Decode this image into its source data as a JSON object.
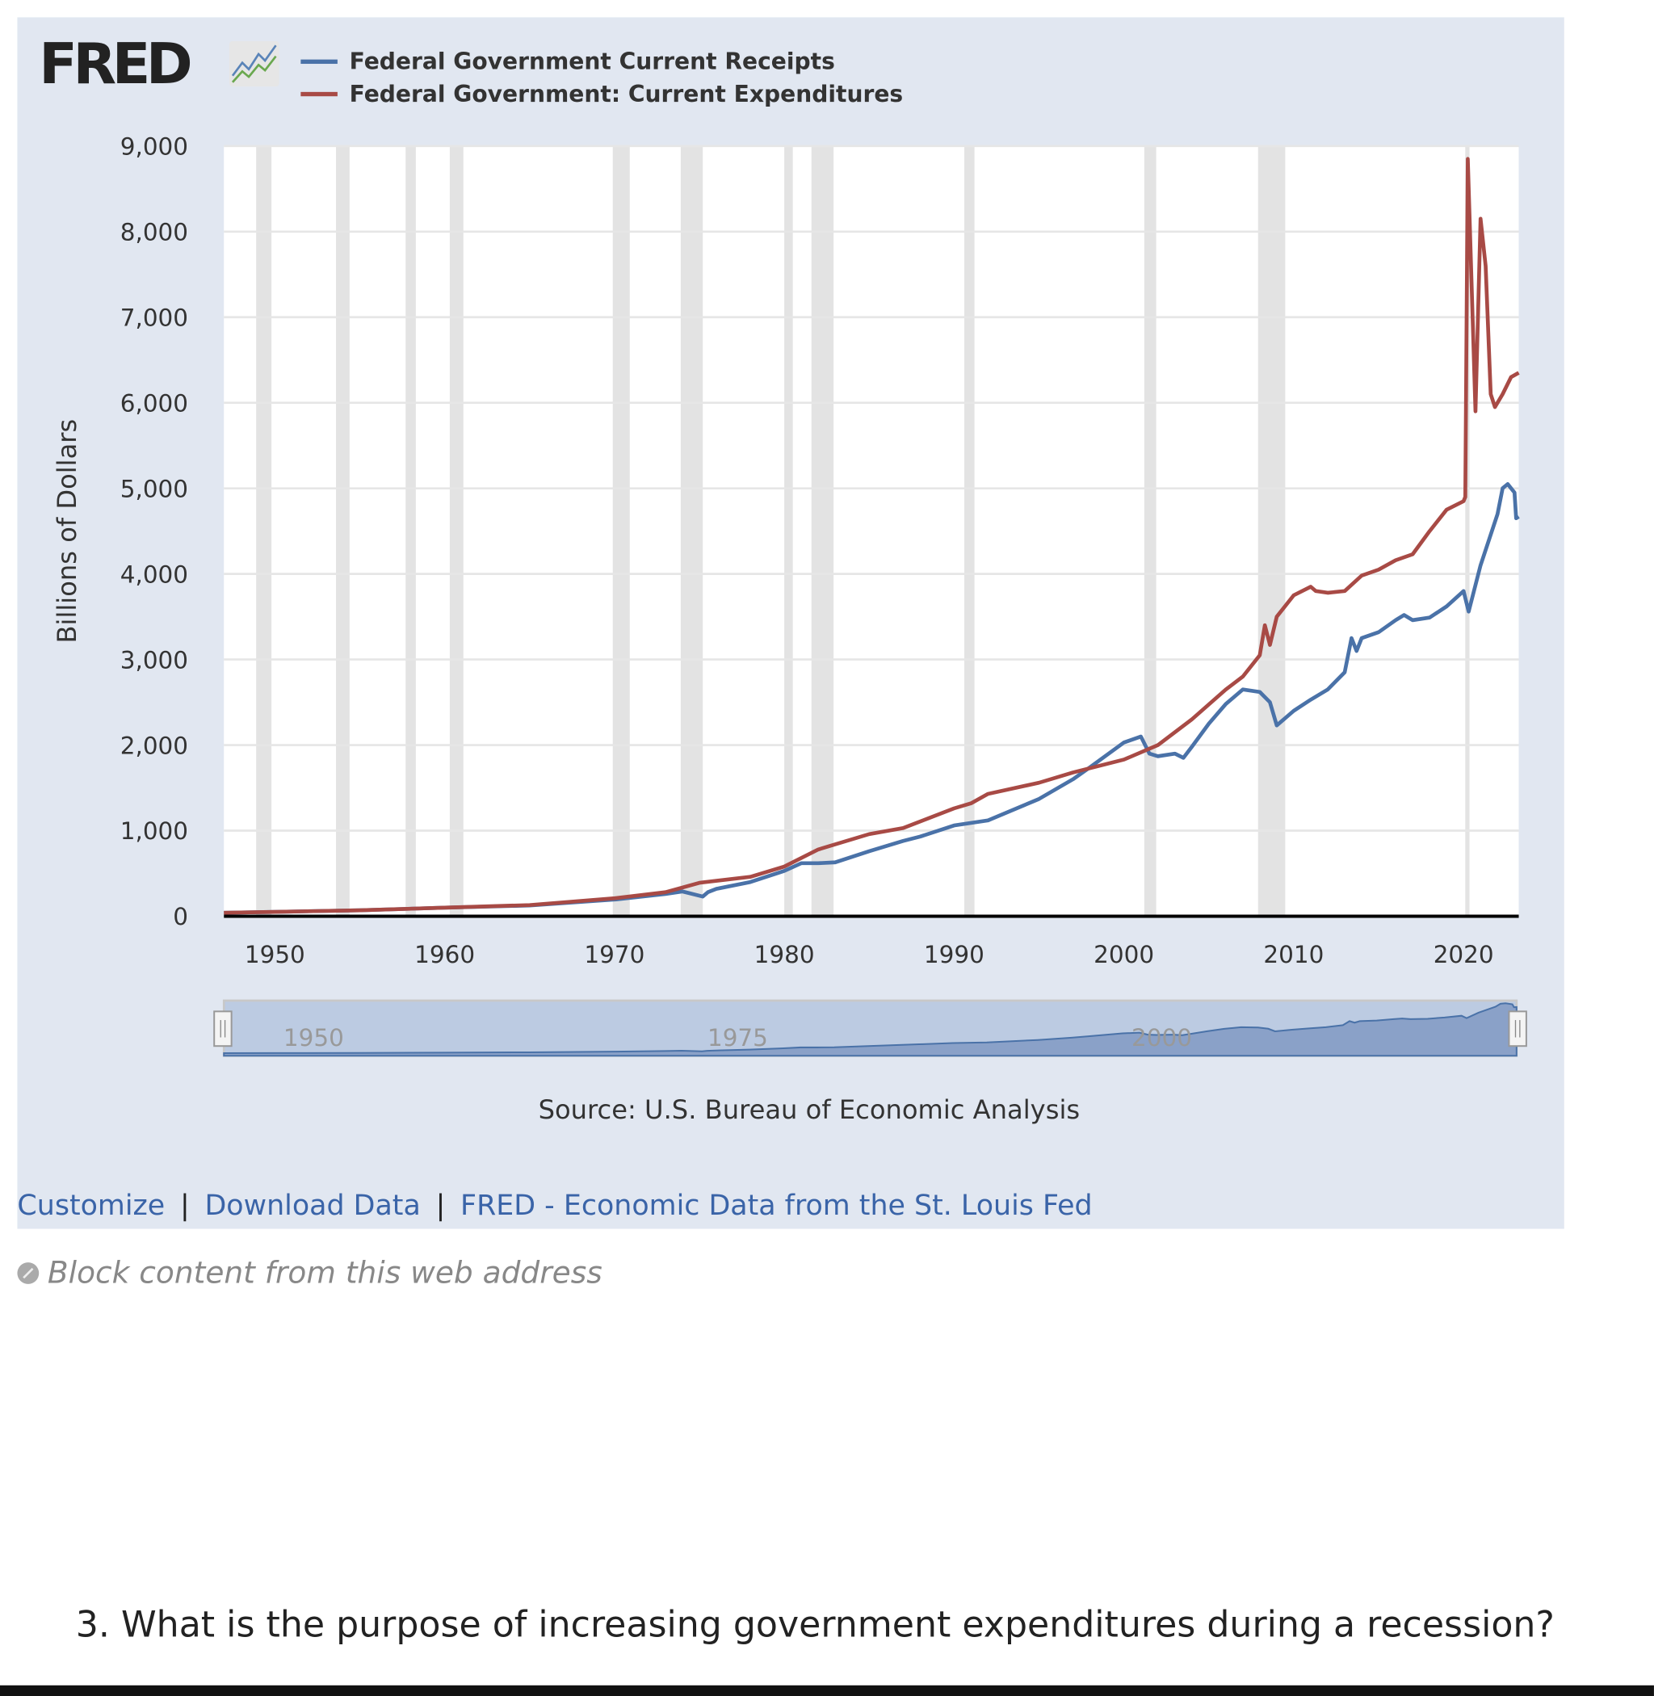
{
  "logo": {
    "text": "FRED",
    "icon": "fred-chart-logo-icon"
  },
  "links": [
    {
      "label": "Customize"
    },
    {
      "label": "Download Data"
    },
    {
      "label": "FRED - Economic Data from the St. Louis Fed"
    }
  ],
  "link_separator": "|",
  "block_content": {
    "label": "Block content from this web address",
    "icon": "block-icon"
  },
  "question": "3.  What is the purpose of increasing government expenditures during a recession?",
  "chart_data": {
    "type": "line",
    "title": "",
    "xlabel": "",
    "ylabel": "Billions of Dollars",
    "source": "Source: U.S. Bureau of Economic Analysis",
    "xlim": [
      1947,
      2023.25
    ],
    "ylim": [
      0,
      9000
    ],
    "yticks": [
      "0",
      "1,000",
      "2,000",
      "3,000",
      "4,000",
      "5,000",
      "6,000",
      "7,000",
      "8,000",
      "9,000"
    ],
    "xticks": [
      "1950",
      "1960",
      "1970",
      "1980",
      "1990",
      "2000",
      "2010",
      "2020"
    ],
    "grid": true,
    "legend": "top-left",
    "navigator_labels": [
      "1950",
      "1975",
      "2000"
    ],
    "recessions": [
      [
        1948.9,
        1949.8
      ],
      [
        1953.6,
        1954.4
      ],
      [
        1957.7,
        1958.3
      ],
      [
        1960.3,
        1961.1
      ],
      [
        1969.9,
        1970.9
      ],
      [
        1973.9,
        1975.2
      ],
      [
        1980.0,
        1980.5
      ],
      [
        1981.6,
        1982.9
      ],
      [
        1990.6,
        1991.2
      ],
      [
        2001.2,
        2001.9
      ],
      [
        2007.9,
        2009.5
      ],
      [
        2020.1,
        2020.35
      ]
    ],
    "recession_color": "#e3e3e3",
    "series": [
      {
        "name": "Federal Government Current Receipts",
        "color": "#4a72a8",
        "x": [
          1947,
          1950,
          1955,
          1960,
          1965,
          1970,
          1973,
          1974,
          1975.2,
          1975.5,
          1976,
          1978,
          1980,
          1981,
          1982,
          1983,
          1985,
          1987,
          1988,
          1990,
          1992,
          1995,
          1997,
          1998,
          2000,
          2001,
          2001.5,
          2002,
          2003,
          2003.5,
          2004,
          2005,
          2006,
          2007,
          2008,
          2008.6,
          2009,
          2010,
          2011,
          2012,
          2013,
          2013.4,
          2013.7,
          2014,
          2015,
          2016,
          2016.5,
          2017,
          2018,
          2019,
          2020,
          2020.3,
          2021,
          2022,
          2022.3,
          2022.6,
          2023,
          2023.1,
          2023.25
        ],
        "y": [
          40,
          50,
          70,
          100,
          125,
          195,
          260,
          290,
          230,
          280,
          320,
          400,
          530,
          620,
          620,
          630,
          760,
          880,
          930,
          1060,
          1120,
          1370,
          1600,
          1740,
          2030,
          2100,
          1900,
          1870,
          1900,
          1850,
          1980,
          2250,
          2480,
          2650,
          2620,
          2500,
          2230,
          2400,
          2530,
          2650,
          2850,
          3250,
          3100,
          3250,
          3320,
          3460,
          3520,
          3460,
          3490,
          3620,
          3800,
          3560,
          4100,
          4700,
          5000,
          5050,
          4950,
          4650,
          4670
        ]
      },
      {
        "name": "Federal Government: Current Expenditures",
        "color": "#a84a45",
        "x": [
          1947,
          1950,
          1955,
          1960,
          1965,
          1970,
          1973,
          1975,
          1978,
          1980,
          1982,
          1985,
          1987,
          1990,
          1991,
          1992,
          1995,
          1997,
          2000,
          2002,
          2004,
          2006,
          2007,
          2008,
          2008.3,
          2008.6,
          2009,
          2010,
          2011,
          2011.3,
          2012,
          2013,
          2014,
          2015,
          2016,
          2017,
          2018,
          2019,
          2020,
          2020.1,
          2020.25,
          2020.7,
          2021.0,
          2021.3,
          2021.6,
          2021.85,
          2022.3,
          2022.8,
          2023.25
        ],
        "y": [
          40,
          50,
          70,
          100,
          130,
          210,
          280,
          390,
          460,
          580,
          780,
          960,
          1030,
          1260,
          1320,
          1430,
          1560,
          1680,
          1830,
          2000,
          2300,
          2650,
          2800,
          3050,
          3400,
          3170,
          3500,
          3750,
          3850,
          3800,
          3780,
          3800,
          3980,
          4050,
          4160,
          4230,
          4500,
          4750,
          4850,
          4900,
          8850,
          5900,
          8150,
          7600,
          6100,
          5950,
          6100,
          6300,
          6350
        ]
      }
    ]
  }
}
